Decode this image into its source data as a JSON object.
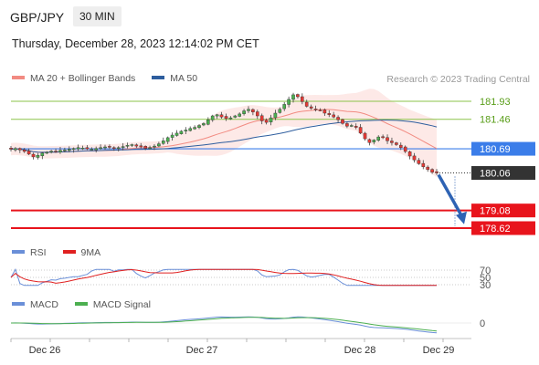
{
  "header": {
    "symbol": "GBP/JPY",
    "timeframe": "30 MIN",
    "timestamp": "Thursday, December 28, 2023 12:14:02 PM CET"
  },
  "legends": {
    "main": [
      {
        "label": "MA 20 + Bollinger Bands",
        "color": "#f28b82"
      },
      {
        "label": "MA 50",
        "color": "#2e5e9e"
      }
    ],
    "rsi": [
      {
        "label": "RSI",
        "color": "#6a8fd8"
      },
      {
        "label": "9MA",
        "color": "#e02020"
      }
    ],
    "macd": [
      {
        "label": "MACD",
        "color": "#6a8fd8"
      },
      {
        "label": "MACD Signal",
        "color": "#4caf50"
      }
    ]
  },
  "credit": "Research © 2023 Trading Central",
  "colors": {
    "resistance": "#8bc34a",
    "resistance_text": "#5a9e1a",
    "pivot": "#3b7de9",
    "current": "#333333",
    "support": "#e8141c",
    "arrow": "#2e63b4",
    "bull": "#4caf50",
    "bear": "#e53935"
  },
  "chart_data": {
    "type": "candlestick",
    "x_ticks": [
      "Dec 26",
      "Dec 27",
      "Dec 28",
      "Dec 29"
    ],
    "levels": [
      {
        "kind": "resistance",
        "value": 181.93,
        "label": "181.93"
      },
      {
        "kind": "resistance",
        "value": 181.46,
        "label": "181.46"
      },
      {
        "kind": "pivot",
        "value": 180.69,
        "label": "180.69"
      },
      {
        "kind": "current",
        "value": 180.06,
        "label": "180.06"
      },
      {
        "kind": "support",
        "value": 179.08,
        "label": "179.08"
      },
      {
        "kind": "support",
        "value": 178.62,
        "label": "178.62"
      }
    ],
    "close": [
      180.68,
      180.7,
      180.66,
      180.62,
      180.55,
      180.48,
      180.52,
      180.58,
      180.6,
      180.63,
      180.62,
      180.65,
      180.66,
      180.68,
      180.7,
      180.72,
      180.71,
      180.69,
      180.68,
      180.7,
      180.72,
      180.74,
      180.73,
      180.71,
      180.72,
      180.75,
      180.78,
      180.8,
      180.76,
      180.74,
      180.7,
      180.72,
      180.76,
      180.82,
      180.9,
      180.98,
      181.05,
      181.1,
      181.15,
      181.18,
      181.22,
      181.25,
      181.3,
      181.35,
      181.45,
      181.55,
      181.58,
      181.52,
      181.48,
      181.5,
      181.55,
      181.6,
      181.68,
      181.72,
      181.65,
      181.55,
      181.42,
      181.38,
      181.5,
      181.62,
      181.72,
      181.85,
      181.98,
      182.1,
      182.05,
      181.92,
      181.8,
      181.75,
      181.72,
      181.7,
      181.62,
      181.58,
      181.52,
      181.45,
      181.35,
      181.28,
      181.3,
      181.25,
      181.1,
      180.95,
      180.85,
      180.92,
      181.0,
      180.98,
      180.9,
      180.85,
      180.8,
      180.72,
      180.62,
      180.5,
      180.4,
      180.3,
      180.22,
      180.15,
      180.08,
      180.06
    ],
    "rsi_axis": [
      70,
      50,
      30
    ],
    "macd_axis": [
      0
    ]
  }
}
